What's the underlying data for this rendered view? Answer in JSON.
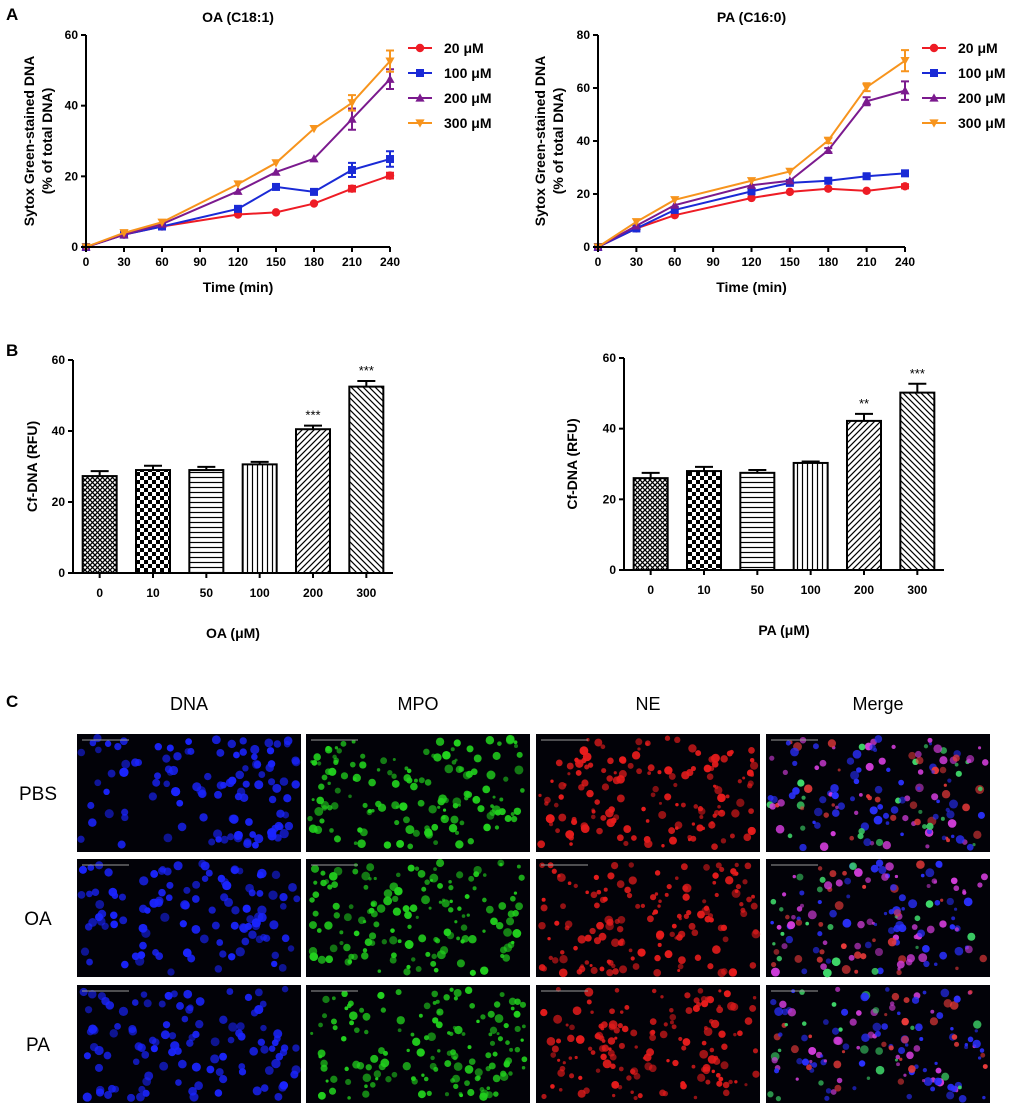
{
  "panels": {
    "A": "A",
    "B": "B",
    "C": "C"
  },
  "chart_data": [
    {
      "type": "line",
      "panel": "A",
      "title": "OA (C18:1)",
      "xlabel": "Time (min)",
      "ylabel": [
        "Sytox Green-stained DNA",
        "(% of total DNA)"
      ],
      "x": [
        0,
        30,
        60,
        120,
        150,
        180,
        210,
        240
      ],
      "xticks": [
        0,
        30,
        60,
        90,
        120,
        150,
        180,
        210,
        240
      ],
      "xlim": [
        0,
        240
      ],
      "ylim": [
        0,
        60
      ],
      "yticks": [
        0,
        20,
        40,
        60
      ],
      "legend_position": "right",
      "series": [
        {
          "name": "20 μM",
          "color": "#ee1c25",
          "marker": "circle",
          "values": [
            0,
            3.5,
            5.8,
            9.2,
            9.8,
            12.3,
            16.5,
            20.2
          ],
          "errors": [
            0,
            0,
            0,
            0.5,
            0.5,
            0.5,
            0.8,
            0.8
          ]
        },
        {
          "name": "100 μM",
          "color": "#1a2ad6",
          "marker": "square",
          "values": [
            0,
            3.5,
            5.8,
            10.8,
            17.0,
            15.6,
            21.8,
            24.9
          ],
          "errors": [
            0,
            0,
            0,
            0.6,
            0.6,
            0.6,
            2.0,
            2.2
          ]
        },
        {
          "name": "200 μM",
          "color": "#7b1a8e",
          "marker": "triangle-up",
          "values": [
            0,
            3.5,
            6.5,
            15.8,
            21.2,
            25.0,
            36.2,
            47.5
          ],
          "errors": [
            0,
            0,
            0,
            0.5,
            0.5,
            0.5,
            3.0,
            2.8
          ]
        },
        {
          "name": "300 μM",
          "color": "#f7941d",
          "marker": "triangle-down",
          "values": [
            0,
            4.0,
            7.0,
            17.8,
            23.8,
            33.5,
            40.8,
            52.6
          ],
          "errors": [
            0,
            0,
            0,
            0.5,
            0.5,
            0.5,
            2.2,
            3.0
          ]
        }
      ]
    },
    {
      "type": "line",
      "panel": "A",
      "title": "PA (C16:0)",
      "xlabel": "Time (min)",
      "ylabel": [
        "Sytox Green-stained DNA",
        "(% of total DNA)"
      ],
      "x": [
        0,
        30,
        60,
        120,
        150,
        180,
        210,
        240
      ],
      "xticks": [
        0,
        30,
        60,
        90,
        120,
        150,
        180,
        210,
        240
      ],
      "xlim": [
        0,
        240
      ],
      "ylim": [
        0,
        80
      ],
      "yticks": [
        0,
        20,
        40,
        60,
        80
      ],
      "legend_position": "right",
      "series": [
        {
          "name": "20 μM",
          "color": "#ee1c25",
          "marker": "circle",
          "values": [
            0,
            7.0,
            12.0,
            18.5,
            20.8,
            22.0,
            21.2,
            22.9
          ],
          "errors": [
            0,
            0,
            0,
            0.6,
            0.6,
            0.6,
            0.6,
            0.8
          ]
        },
        {
          "name": "100 μM",
          "color": "#1a2ad6",
          "marker": "square",
          "values": [
            0,
            7.0,
            14.0,
            21.0,
            24.2,
            25.0,
            26.7,
            27.8
          ],
          "errors": [
            0,
            0,
            0,
            0.6,
            0.6,
            0.6,
            0.8,
            1.0
          ]
        },
        {
          "name": "200 μM",
          "color": "#7b1a8e",
          "marker": "triangle-up",
          "values": [
            0,
            8.0,
            15.8,
            23.3,
            25.0,
            36.5,
            55.0,
            59.0
          ],
          "errors": [
            0,
            0,
            0,
            0.6,
            0.6,
            0.8,
            1.5,
            3.5
          ]
        },
        {
          "name": "300 μM",
          "color": "#f7941d",
          "marker": "triangle-down",
          "values": [
            0,
            9.5,
            17.8,
            25.0,
            28.5,
            40.2,
            60.3,
            70.3
          ],
          "errors": [
            0,
            0,
            0,
            0.6,
            0.6,
            1.0,
            1.5,
            4.0
          ]
        }
      ]
    },
    {
      "type": "bar",
      "panel": "B",
      "title": "",
      "xlabel": "OA (μM)",
      "ylabel": "Cf-DNA  (RFU)",
      "categories": [
        "0",
        "10",
        "50",
        "100",
        "200",
        "300"
      ],
      "values": [
        27.3,
        29.0,
        29.0,
        30.6,
        40.5,
        52.5
      ],
      "errors": [
        1.4,
        1.2,
        0.9,
        0.7,
        1.0,
        1.6
      ],
      "significance": [
        "",
        "",
        "",
        "",
        "***",
        "***"
      ],
      "patterns": [
        "crosshatch",
        "checker",
        "horizontal",
        "vertical",
        "diagonal-up",
        "diagonal-down"
      ],
      "ylim": [
        0,
        60
      ],
      "yticks": [
        0,
        20,
        40,
        60
      ]
    },
    {
      "type": "bar",
      "panel": "B",
      "title": "",
      "xlabel": "PA (μM)",
      "ylabel": "Cf-DNA  (RFU)",
      "categories": [
        "0",
        "10",
        "50",
        "100",
        "200",
        "300"
      ],
      "values": [
        26.0,
        28.0,
        27.5,
        30.3,
        42.2,
        50.2
      ],
      "errors": [
        1.5,
        1.2,
        0.8,
        0.4,
        2.0,
        2.5
      ],
      "significance": [
        "",
        "",
        "",
        "",
        "**",
        "***"
      ],
      "patterns": [
        "crosshatch",
        "checker",
        "horizontal",
        "vertical",
        "diagonal-up",
        "diagonal-down"
      ],
      "ylim": [
        0,
        60
      ],
      "yticks": [
        0,
        20,
        40,
        60
      ]
    }
  ],
  "microscopy": {
    "columns": [
      "DNA",
      "MPO",
      "NE",
      "Merge"
    ],
    "rows": [
      "PBS",
      "OA",
      "PA"
    ],
    "channel_colors": {
      "DNA": "#1a24ff",
      "MPO": "#22d21e",
      "NE": "#e81c1c"
    }
  }
}
